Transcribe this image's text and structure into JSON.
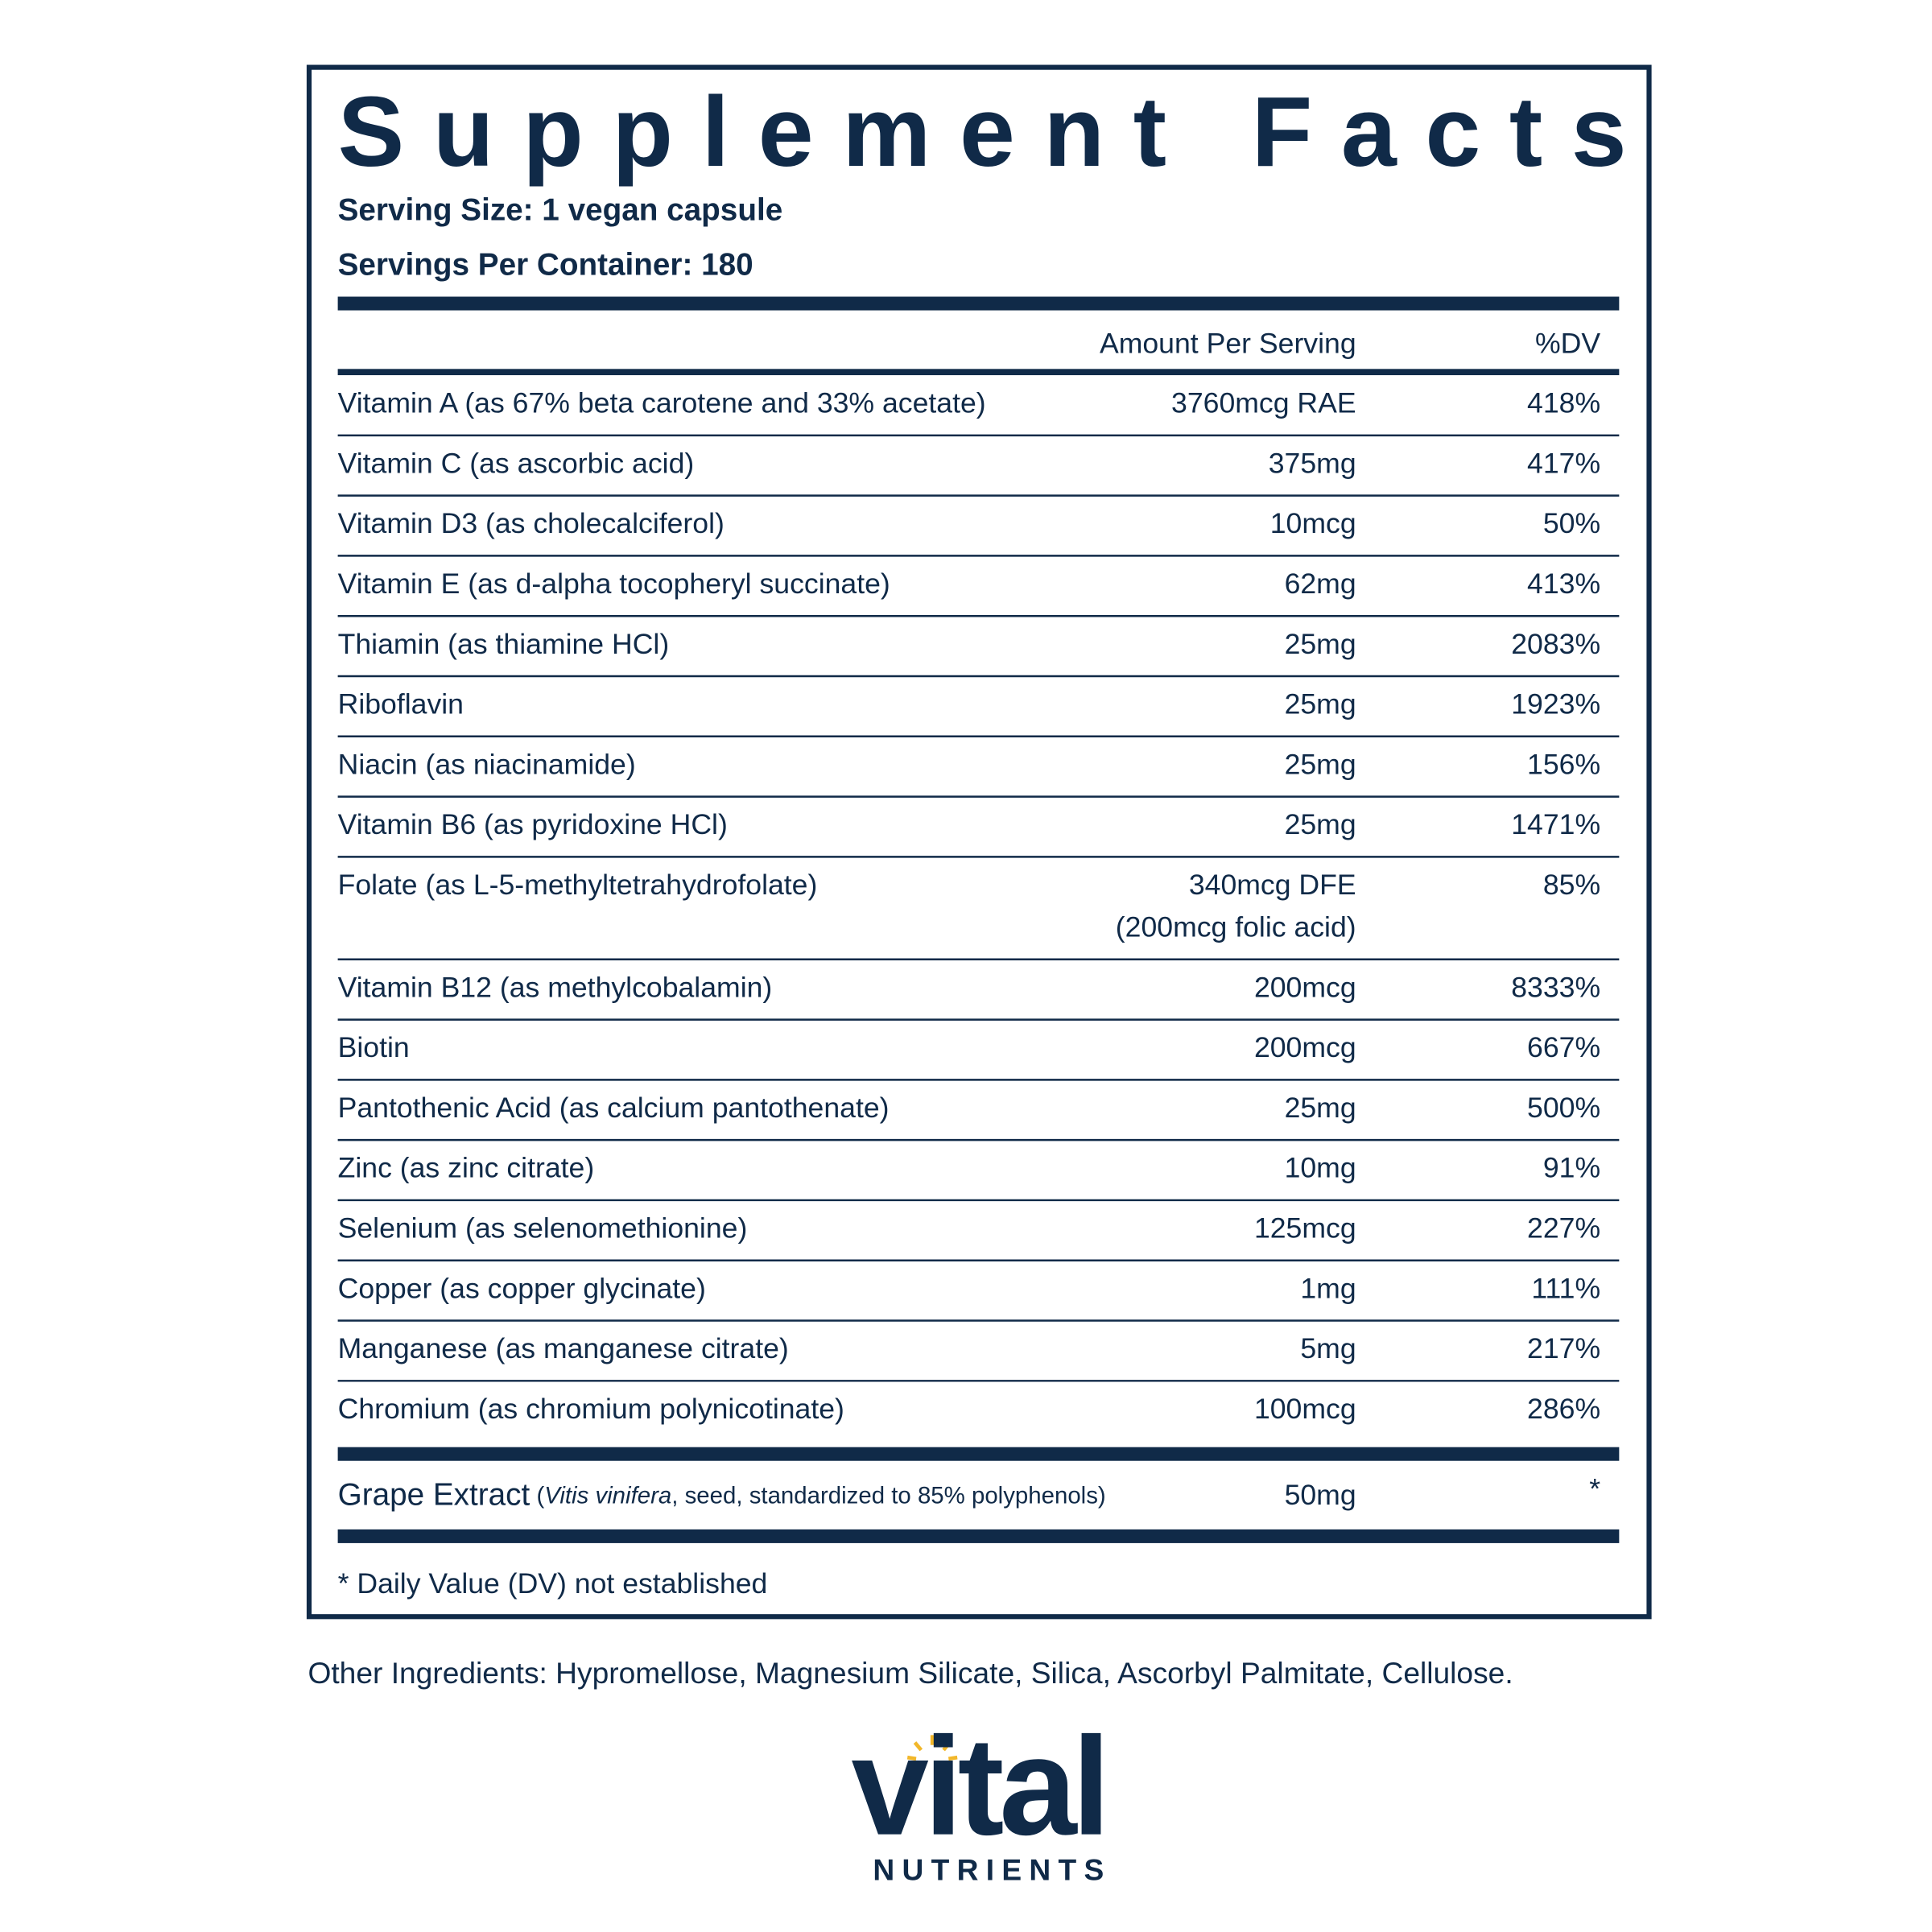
{
  "header": {
    "title": "Supplement Facts",
    "serving_size": "Serving Size: 1 vegan capsule",
    "servings_per_container": "Servings Per Container: 180"
  },
  "table": {
    "columns": [
      "Amount Per Serving",
      "%DV"
    ],
    "rows": [
      [
        "Vitamin A (as 67% beta carotene and 33% acetate)",
        "3760mcg RAE",
        "418%"
      ],
      [
        "Vitamin C (as ascorbic acid)",
        "375mg",
        "417%"
      ],
      [
        "Vitamin D3 (as cholecalciferol)",
        "10mcg",
        "50%"
      ],
      [
        "Vitamin E (as d-alpha tocopheryl succinate)",
        "62mg",
        "413%"
      ],
      [
        "Thiamin (as thiamine HCl)",
        "25mg",
        "2083%"
      ],
      [
        "Riboflavin",
        "25mg",
        "1923%"
      ],
      [
        "Niacin (as niacinamide)",
        "25mg",
        "156%"
      ],
      [
        "Vitamin B6 (as pyridoxine HCl)",
        "25mg",
        "1471%"
      ],
      [
        "Folate (as L-5-methyltetrahydrofolate)",
        "340mcg DFE",
        "85%",
        "(200mcg folic acid)"
      ],
      [
        "Vitamin B12 (as methylcobalamin)",
        "200mcg",
        "8333%"
      ],
      [
        "Biotin",
        "200mcg",
        "667%"
      ],
      [
        "Pantothenic Acid (as calcium pantothenate)",
        "25mg",
        "500%"
      ],
      [
        "Zinc (as zinc citrate)",
        "10mg",
        "91%"
      ],
      [
        "Selenium (as selenomethionine)",
        "125mcg",
        "227%"
      ],
      [
        "Copper (as copper glycinate)",
        "1mg",
        "111%"
      ],
      [
        "Manganese (as manganese citrate)",
        "5mg",
        "217%"
      ],
      [
        "Chromium (as chromium polynicotinate)",
        "100mcg",
        "286%"
      ]
    ],
    "extract": {
      "name": "Grape Extract",
      "detail_open": " (",
      "latin": "Vitis vinifera",
      "detail_rest": ", seed, standardized to 85% polyphenols)",
      "amount": "50mg",
      "dv": "*"
    },
    "footnote": "* Daily Value (DV) not established"
  },
  "other_ingredients": "Other Ingredients: Hypromellose, Magnesium Silicate, Silica, Ascorbyl Palmitate, Cellulose.",
  "logo": {
    "name": "vital",
    "tagline": "NUTRIENTS"
  }
}
